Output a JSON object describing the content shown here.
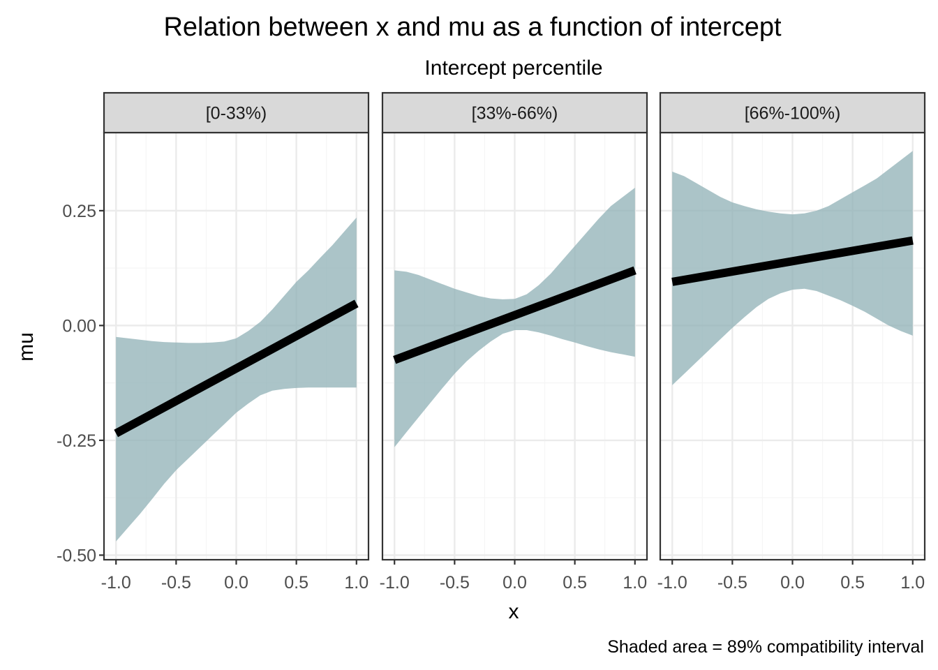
{
  "chart_data": {
    "type": "line",
    "title": "Relation between x and mu as a function of intercept",
    "subtitle": "Intercept percentile",
    "xlabel": "x",
    "ylabel": "mu",
    "caption": "Shaded area = 89% compatibility interval",
    "xlim": [
      -1.1,
      1.1
    ],
    "ylim": [
      -0.51,
      0.42
    ],
    "x_ticks": [
      -1.0,
      -0.5,
      0.0,
      0.5,
      1.0
    ],
    "x_tick_labels": [
      "-1.0",
      "-0.5",
      "0.0",
      "0.5",
      "1.0"
    ],
    "y_ticks": [
      -0.5,
      -0.25,
      0.0,
      0.25
    ],
    "y_tick_labels": [
      "-0.50",
      "-0.25",
      "0.00",
      "0.25"
    ],
    "grid": true,
    "colors": {
      "band": "#8fb0b6",
      "line": "#000000",
      "strip": "#d9d9d9",
      "grid_major": "#ebebeb",
      "grid_minor": "#f5f5f5",
      "border": "#333333"
    },
    "panels": [
      {
        "strip": "[0-33%)",
        "x": [
          -1.0,
          -0.9,
          -0.8,
          -0.7,
          -0.6,
          -0.5,
          -0.4,
          -0.3,
          -0.2,
          -0.1,
          0.0,
          0.1,
          0.2,
          0.3,
          0.4,
          0.5,
          0.6,
          0.7,
          0.8,
          0.9,
          1.0
        ],
        "upper": [
          -0.025,
          -0.028,
          -0.031,
          -0.034,
          -0.036,
          -0.037,
          -0.038,
          -0.038,
          -0.037,
          -0.035,
          -0.028,
          -0.012,
          0.008,
          0.035,
          0.065,
          0.095,
          0.12,
          0.148,
          0.175,
          0.205,
          0.235
        ],
        "lower": [
          -0.47,
          -0.44,
          -0.41,
          -0.378,
          -0.345,
          -0.315,
          -0.29,
          -0.265,
          -0.24,
          -0.215,
          -0.19,
          -0.17,
          -0.152,
          -0.142,
          -0.138,
          -0.136,
          -0.135,
          -0.135,
          -0.135,
          -0.135,
          -0.135
        ],
        "line_start": [
          -1.0,
          -0.235
        ],
        "line_end": [
          1.0,
          0.048
        ]
      },
      {
        "strip": "[33%-66%)",
        "x": [
          -1.0,
          -0.9,
          -0.8,
          -0.7,
          -0.6,
          -0.5,
          -0.4,
          -0.3,
          -0.2,
          -0.1,
          0.0,
          0.1,
          0.2,
          0.3,
          0.4,
          0.5,
          0.6,
          0.7,
          0.8,
          0.9,
          1.0
        ],
        "upper": [
          0.12,
          0.117,
          0.11,
          0.1,
          0.09,
          0.08,
          0.072,
          0.064,
          0.059,
          0.057,
          0.058,
          0.068,
          0.088,
          0.113,
          0.143,
          0.173,
          0.203,
          0.233,
          0.26,
          0.28,
          0.3
        ],
        "lower": [
          -0.265,
          -0.232,
          -0.2,
          -0.168,
          -0.136,
          -0.105,
          -0.078,
          -0.055,
          -0.035,
          -0.018,
          -0.01,
          -0.01,
          -0.015,
          -0.022,
          -0.03,
          -0.037,
          -0.045,
          -0.052,
          -0.058,
          -0.063,
          -0.068
        ],
        "line_start": [
          -1.0,
          -0.075
        ],
        "line_end": [
          1.0,
          0.12
        ]
      },
      {
        "strip": "[66%-100%)",
        "x": [
          -1.0,
          -0.9,
          -0.8,
          -0.7,
          -0.6,
          -0.5,
          -0.4,
          -0.3,
          -0.2,
          -0.1,
          0.0,
          0.1,
          0.2,
          0.3,
          0.4,
          0.5,
          0.6,
          0.7,
          0.8,
          0.9,
          1.0
        ],
        "upper": [
          0.335,
          0.325,
          0.31,
          0.295,
          0.28,
          0.268,
          0.26,
          0.253,
          0.248,
          0.244,
          0.242,
          0.244,
          0.25,
          0.26,
          0.275,
          0.29,
          0.305,
          0.32,
          0.34,
          0.36,
          0.38
        ],
        "lower": [
          -0.13,
          -0.105,
          -0.08,
          -0.055,
          -0.03,
          -0.005,
          0.018,
          0.04,
          0.058,
          0.07,
          0.078,
          0.08,
          0.075,
          0.065,
          0.055,
          0.043,
          0.03,
          0.015,
          0.0,
          -0.012,
          -0.022
        ],
        "line_start": [
          -1.0,
          0.095
        ],
        "line_end": [
          1.0,
          0.185
        ]
      }
    ]
  }
}
